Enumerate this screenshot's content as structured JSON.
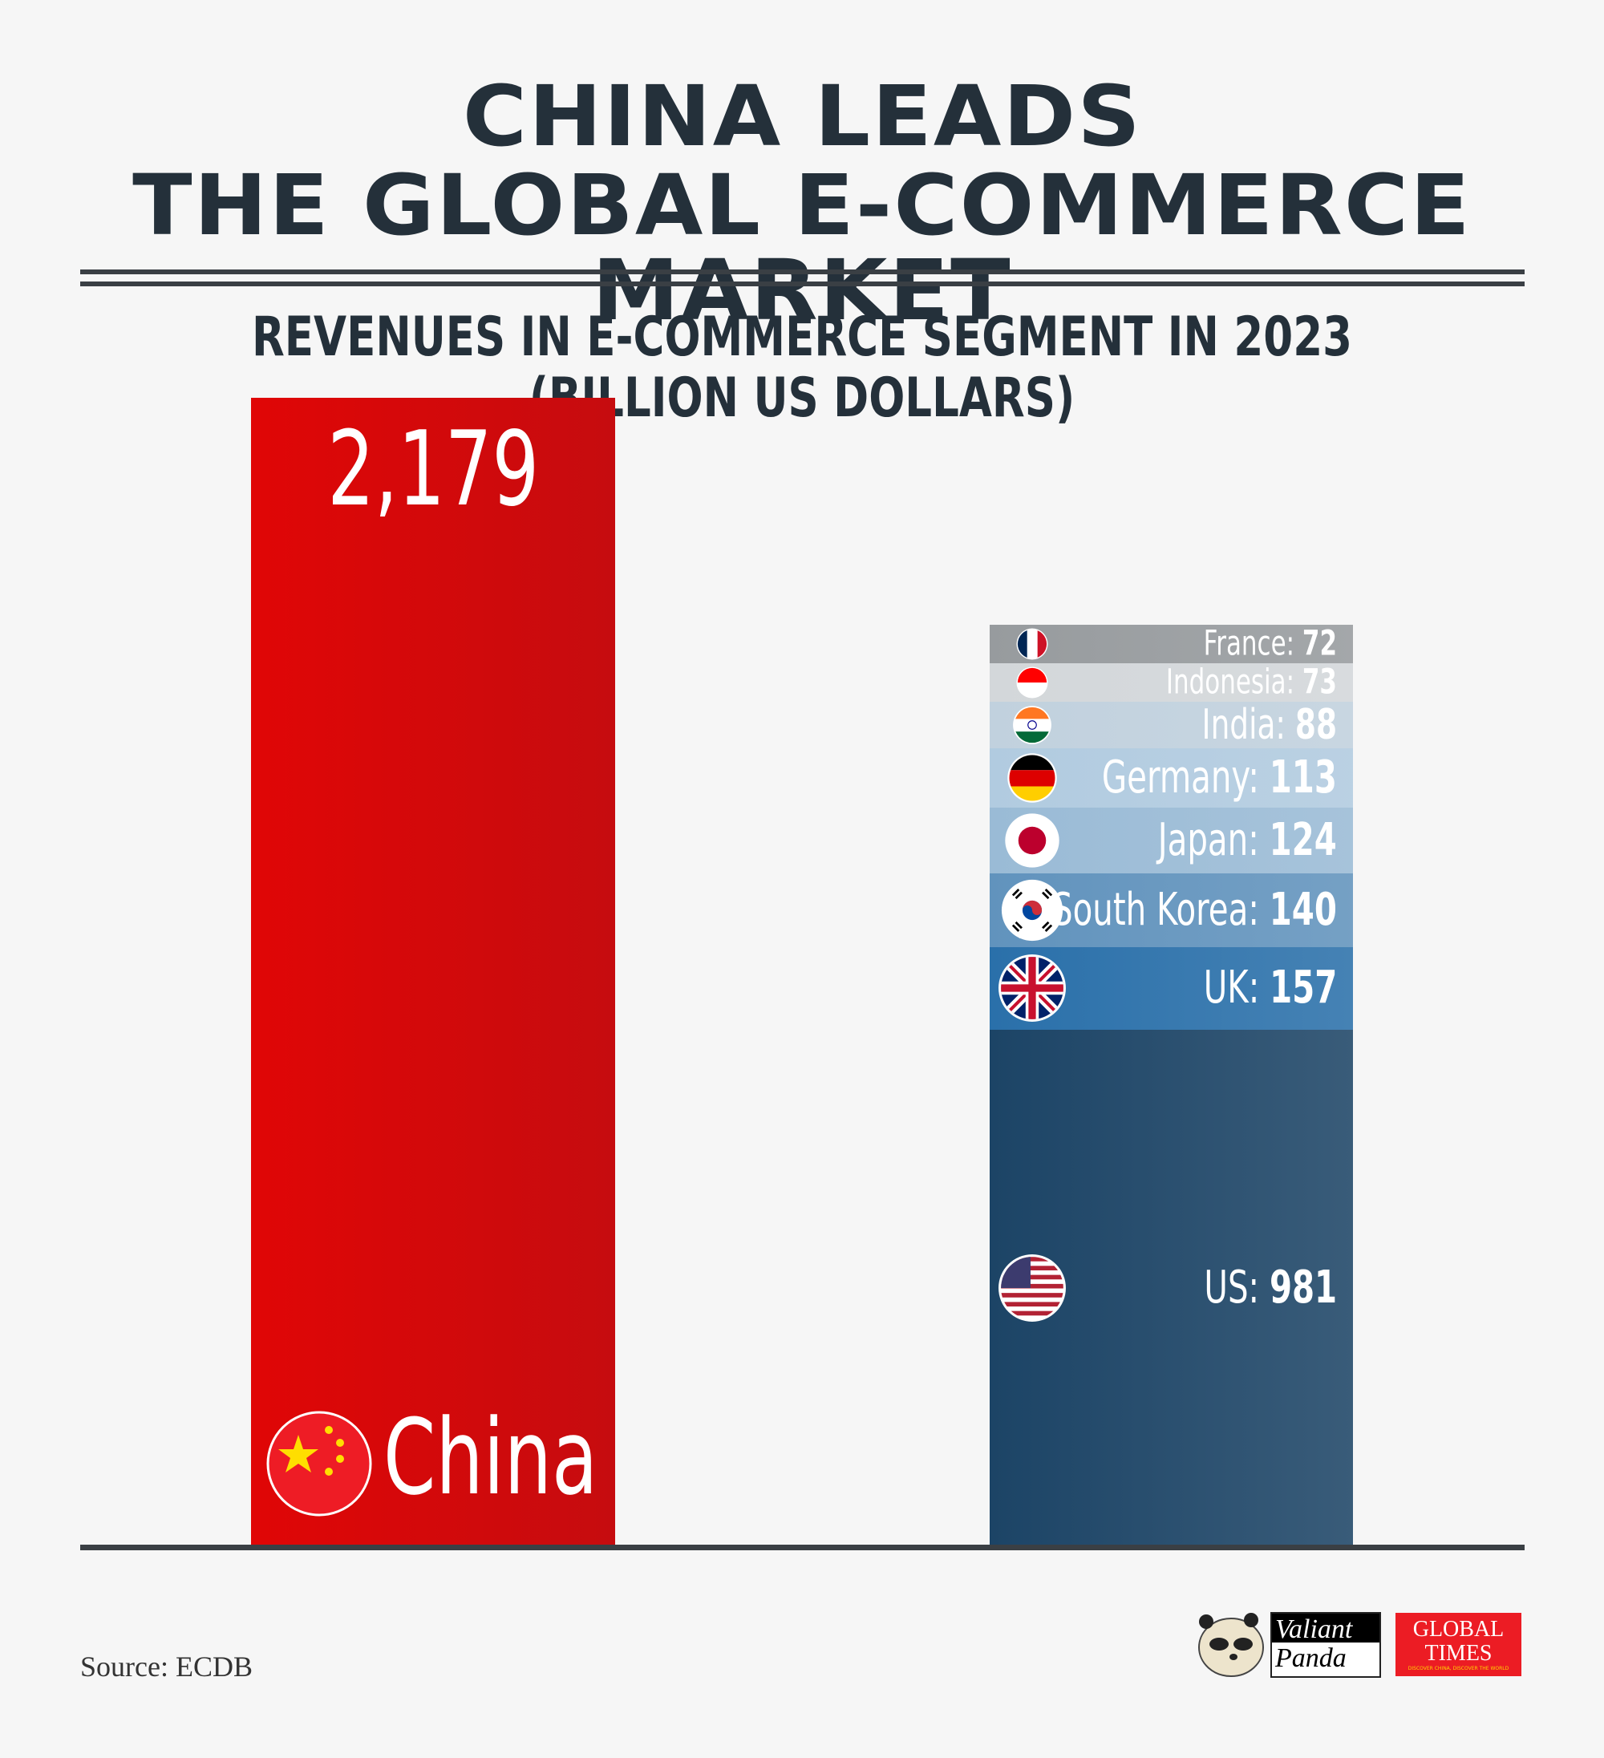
{
  "title_lines": [
    "CHINA LEADS",
    "THE GLOBAL E-COMMERCE MARKET"
  ],
  "subtitle": "REVENUES IN E-COMMERCE SEGMENT IN 2023 (BILLION US DOLLARS)",
  "source": "Source: ECDB",
  "logos": {
    "panda": "Valiant Panda",
    "global_times": "GLOBAL TIMES",
    "global_times_tagline": "DISCOVER CHINA, DISCOVER THE WORLD"
  },
  "chart_data": {
    "type": "bar",
    "stacked_right_bar": true,
    "bars": [
      {
        "name": "China",
        "value": 2179,
        "value_label": "2,179",
        "color": "#d40a0c",
        "flag": "china-flag"
      },
      {
        "stack": [
          {
            "name": "US",
            "value": 981,
            "label": "US:",
            "value_label": "981",
            "color": "#1c4466",
            "flag": "us-flag"
          },
          {
            "name": "UK",
            "value": 157,
            "label": "UK:",
            "value_label": "157",
            "color": "#2a70aa",
            "flag": "uk-flag"
          },
          {
            "name": "South Korea",
            "value": 140,
            "label": "South Korea:",
            "value_label": "140",
            "color": "#6193bd",
            "flag": "south-korea-flag"
          },
          {
            "name": "Japan",
            "value": 124,
            "label": "Japan:",
            "value_label": "124",
            "color": "#9abbd6",
            "flag": "japan-flag"
          },
          {
            "name": "Germany",
            "value": 113,
            "label": "Germany:",
            "value_label": "113",
            "color": "#b1cbe0",
            "flag": "germany-flag"
          },
          {
            "name": "India",
            "value": 88,
            "label": "India:",
            "value_label": "88",
            "color": "#c1d1de",
            "flag": "india-flag"
          },
          {
            "name": "Indonesia",
            "value": 73,
            "label": "Indonesia:",
            "value_label": "73",
            "color": "#d3d7da",
            "flag": "indonesia-flag"
          },
          {
            "name": "France",
            "value": 72,
            "label": "France:",
            "value_label": "72",
            "color": "#979b9e",
            "flag": "france-flag"
          }
        ]
      }
    ],
    "grid": false
  }
}
